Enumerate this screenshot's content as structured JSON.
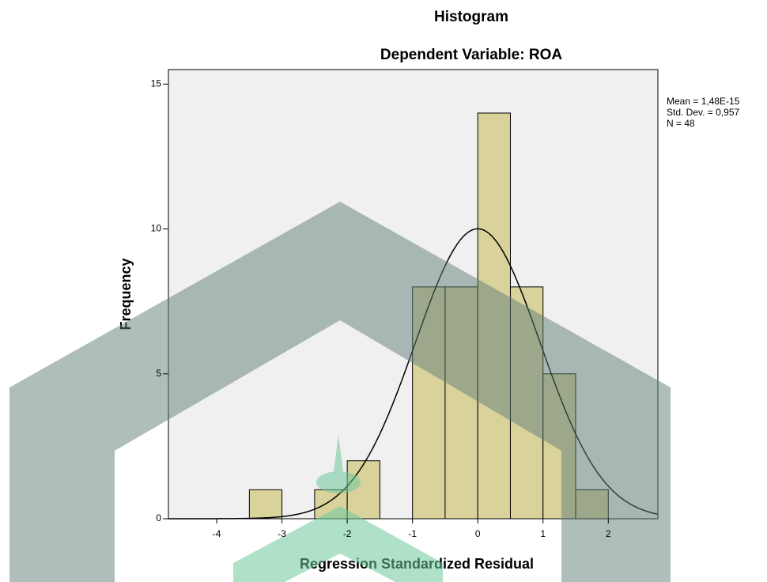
{
  "chart_data": {
    "type": "histogram",
    "title": "Histogram",
    "subtitle": "Dependent Variable: ROA",
    "x_label": "Regression Standardized Residual",
    "y_label": "Frequency",
    "bins": [
      -3.5,
      -3,
      -2.5,
      -2,
      -1.5,
      -1,
      -0.5,
      0,
      0.5,
      1,
      1.5,
      2
    ],
    "values": [
      1,
      0,
      1,
      2,
      0,
      8,
      8,
      14,
      8,
      5,
      1
    ],
    "color": "#d9d29b",
    "xlim": [
      -4.74,
      2.76
    ],
    "xticks": [
      -4,
      -3,
      -2,
      -1,
      0,
      1,
      2
    ],
    "ylim": [
      0,
      15.5
    ],
    "yticks": [
      0,
      5,
      10,
      15
    ],
    "stats": [
      {
        "value": 1.48e-15,
        "label": "Mean = 1,48E-15"
      },
      {
        "value": 0.957,
        "label": "Std. Dev. = 0,957"
      },
      {
        "value": 48,
        "label": "N = 48"
      }
    ]
  }
}
